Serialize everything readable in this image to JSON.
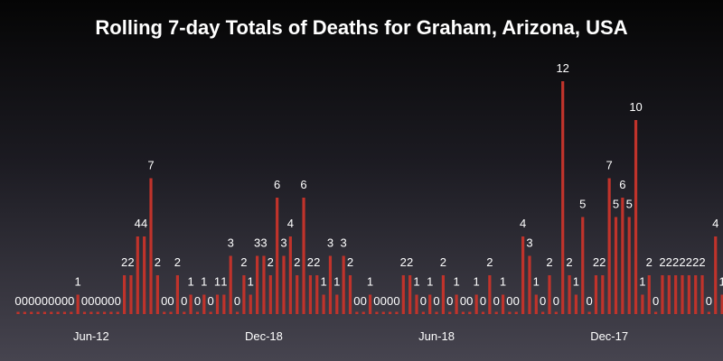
{
  "chart_data": {
    "type": "bar",
    "title": "Rolling 7-day Totals of Deaths for Graham, Arizona, USA",
    "xlabel": "",
    "ylabel": "",
    "ylim": [
      0,
      12
    ],
    "grid": false,
    "bar_color": "#c0332b",
    "label_color": "#ffffff",
    "tick_labels": [
      {
        "label": "Jun-12",
        "index": 11
      },
      {
        "label": "Dec-18",
        "index": 37
      },
      {
        "label": "Jun-18",
        "index": 63
      },
      {
        "label": "Dec-17",
        "index": 89
      }
    ],
    "values": [
      0,
      0,
      0,
      0,
      0,
      0,
      0,
      0,
      0,
      1,
      0,
      0,
      0,
      0,
      0,
      0,
      2,
      2,
      4,
      4,
      7,
      2,
      0,
      0,
      2,
      0,
      1,
      0,
      1,
      0,
      1,
      1,
      3,
      0,
      2,
      1,
      3,
      3,
      2,
      6,
      3,
      4,
      2,
      6,
      2,
      2,
      1,
      3,
      1,
      3,
      2,
      0,
      0,
      1,
      0,
      0,
      0,
      0,
      2,
      2,
      1,
      0,
      1,
      0,
      2,
      0,
      1,
      0,
      0,
      1,
      0,
      2,
      0,
      1,
      0,
      0,
      4,
      3,
      1,
      0,
      2,
      0,
      12,
      2,
      1,
      5,
      0,
      2,
      2,
      7,
      5,
      6,
      5,
      10,
      1,
      2,
      0,
      2,
      2,
      2,
      2,
      2,
      2,
      2,
      0,
      4,
      1,
      0
    ]
  }
}
